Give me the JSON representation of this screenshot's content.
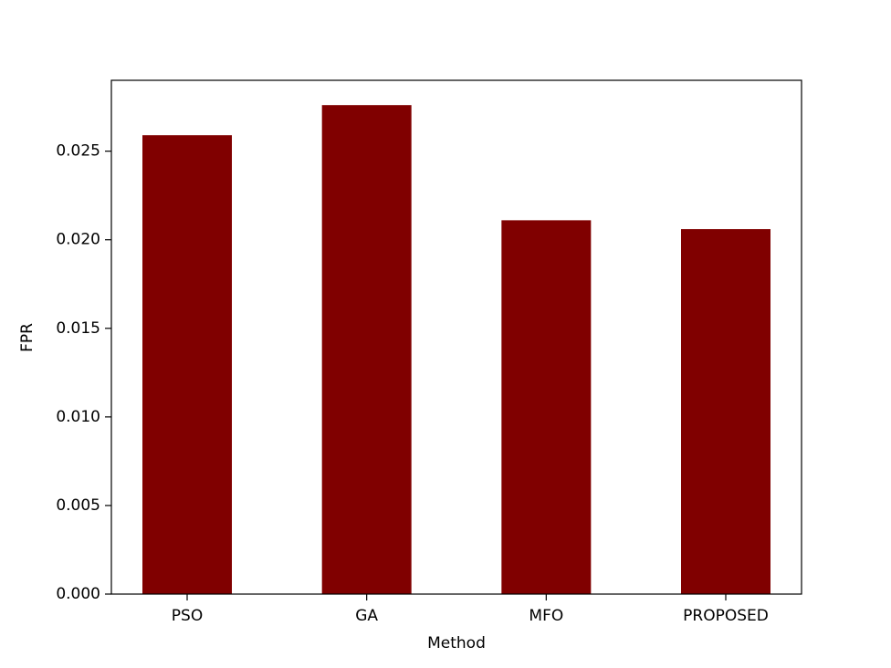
{
  "chart_data": {
    "type": "bar",
    "x_label": "Method",
    "y_label": "FPR",
    "categories": [
      "PSO",
      "GA",
      "MFO",
      "PROPOSED"
    ],
    "values": [
      0.0259,
      0.0276,
      0.0211,
      0.0206
    ],
    "color": "#800000",
    "ylim": [
      0,
      0.029
    ],
    "yticks": [
      {
        "value": 0,
        "label": "0.000"
      },
      0.005,
      {
        "value": 0.01,
        "label": "0.010"
      },
      0.015,
      {
        "value": 0.02,
        "label": "0.020"
      },
      0.025
    ],
    "grid": false
  }
}
